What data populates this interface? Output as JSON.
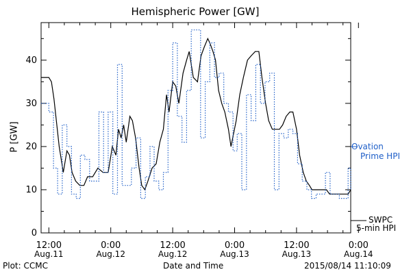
{
  "title": "Hemispheric Power [GW]",
  "footer": {
    "plot_by": "Plot: CCMC",
    "timestamp": "2015/08/14 11:10:09"
  },
  "legend": {
    "ovation_line1": "Ovation",
    "ovation_line2": "Prime HPI",
    "swpc_line1": "SWPC",
    "swpc_line2": "5-min HPI"
  },
  "chart_data": {
    "type": "line",
    "title": "Hemispheric Power [GW]",
    "xlabel": "Date and Time",
    "ylabel": "P [GW]",
    "ylim": [
      0,
      50
    ],
    "xlim_hours": [
      -1.5,
      58.5
    ],
    "yticks": [
      0,
      10,
      20,
      30,
      40
    ],
    "xticks": [
      {
        "hour": 0,
        "line1": "12:00",
        "line2": "Aug.11"
      },
      {
        "hour": 12,
        "line1": "0:00",
        "line2": "Aug.12"
      },
      {
        "hour": 24,
        "line1": "12:00",
        "line2": "Aug.12"
      },
      {
        "hour": 36,
        "line1": "0:00",
        "line2": "Aug.13"
      },
      {
        "hour": 48,
        "line1": "12:00",
        "line2": "Aug.13"
      },
      {
        "hour": 60,
        "line1": "0:00",
        "line2": "Aug.14"
      }
    ],
    "grid": false,
    "legend_position": "right",
    "series": [
      {
        "name": "SWPC 5-min HPI",
        "color": "#000000",
        "style": "solid",
        "x_hours": [
          -1.5,
          -1,
          0,
          0.5,
          1,
          2,
          2.8,
          3.5,
          4,
          4.5,
          5.2,
          6,
          6.8,
          7.5,
          8.5,
          9.5,
          10.5,
          11.5,
          12.3,
          13,
          13.5,
          14,
          14.5,
          15,
          15.7,
          16.2,
          16.8,
          17.5,
          18,
          18.6,
          19.2,
          20,
          20.8,
          21.5,
          22.2,
          22.8,
          23.3,
          24,
          24.6,
          25.2,
          26,
          26.7,
          27.2,
          28,
          28.8,
          29.5,
          30.1,
          30.8,
          31.2,
          31.8,
          32.3,
          32.9,
          33.5,
          34.1,
          34.8,
          35.3,
          35.8,
          36.3,
          37,
          37.7,
          38.5,
          39.2,
          40,
          40.7,
          41.3,
          42,
          42.6,
          43.3,
          44,
          44.7,
          45.3,
          46,
          46.7,
          47.3,
          48,
          48.6,
          49.3,
          49.9,
          50.5,
          51,
          51.5,
          52,
          52.6,
          53.2,
          53.8,
          54.4,
          55,
          55.6,
          56.2,
          56.8,
          57.4,
          58,
          58.5
        ],
        "y": [
          36,
          36,
          36,
          35,
          31,
          20,
          14,
          19,
          18,
          14,
          12,
          11,
          11,
          13,
          13,
          15,
          14,
          14,
          20,
          18,
          24,
          22,
          25,
          21,
          27,
          26,
          22,
          15,
          11,
          10,
          12,
          15,
          16,
          21,
          24,
          32,
          28,
          35,
          34,
          30,
          37,
          40,
          42,
          36,
          35,
          41,
          43,
          45,
          44,
          42,
          40,
          33,
          30,
          28,
          24,
          20,
          23,
          26,
          32,
          36,
          40,
          41,
          42,
          42,
          36,
          30,
          26,
          24,
          24,
          24,
          25,
          27,
          28,
          28,
          24,
          18,
          14,
          12,
          11,
          10,
          10,
          10,
          10,
          10,
          10,
          9,
          9,
          9,
          9,
          9,
          9,
          9,
          10
        ]
      },
      {
        "name": "Ovation Prime HPI",
        "color": "#1f5fc8",
        "style": "dotted-stepped",
        "x_hours": [
          -1.5,
          -0.7,
          0,
          0.9,
          1.7,
          2.6,
          3.5,
          4.4,
          5.3,
          6.1,
          7,
          7.9,
          8.8,
          9.7,
          10.6,
          11.5,
          12.4,
          13.3,
          14.2,
          15.1,
          16,
          16.9,
          17.8,
          18.7,
          19.6,
          20.4,
          21.3,
          22.2,
          23.1,
          24,
          24.9,
          25.8,
          26.7,
          27.6,
          28.5,
          29.4,
          30.3,
          31.2,
          32.1,
          33,
          33.9,
          34.8,
          35.7,
          36.5,
          37.4,
          38.3,
          39.2,
          40.1,
          41,
          41.9,
          42.8,
          43.7,
          44.6,
          45.5,
          46.4,
          47.3,
          48.2,
          49.1,
          50,
          50.9,
          51.8,
          52.7,
          53.6,
          54.5,
          55.4,
          56.3,
          57.2,
          58,
          58.5
        ],
        "y": [
          30,
          30,
          28,
          15,
          9,
          25,
          20,
          9,
          8,
          18,
          17,
          12,
          12,
          28,
          14,
          28,
          9,
          39,
          11,
          11,
          15,
          22,
          8,
          13,
          20,
          12,
          10,
          14,
          33,
          44,
          27,
          21,
          33,
          47,
          47,
          22,
          35,
          44,
          36,
          37,
          30,
          28,
          19,
          23,
          10,
          32,
          26,
          39,
          30,
          35,
          37,
          10,
          23,
          22,
          24,
          23,
          16,
          12,
          10,
          8,
          9,
          9,
          14,
          9,
          9,
          8,
          8,
          15,
          10
        ]
      }
    ]
  }
}
